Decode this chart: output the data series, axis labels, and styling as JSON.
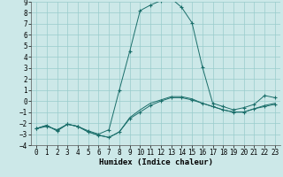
{
  "title": "",
  "xlabel": "Humidex (Indice chaleur)",
  "bg_color": "#cce8e8",
  "line_color": "#1a6e6a",
  "xlim": [
    -0.5,
    23.5
  ],
  "ylim": [
    -4,
    9
  ],
  "xticks": [
    0,
    1,
    2,
    3,
    4,
    5,
    6,
    7,
    8,
    9,
    10,
    11,
    12,
    13,
    14,
    15,
    16,
    17,
    18,
    19,
    20,
    21,
    22,
    23
  ],
  "yticks": [
    -4,
    -3,
    -2,
    -1,
    0,
    1,
    2,
    3,
    4,
    5,
    6,
    7,
    8,
    9
  ],
  "series": [
    {
      "x": [
        0,
        1,
        2,
        3,
        4,
        5,
        6,
        7,
        8,
        9,
        10,
        11,
        12,
        13,
        14,
        15,
        16,
        17,
        18,
        19,
        20,
        21,
        22,
        23
      ],
      "y": [
        -2.5,
        -2.2,
        -2.7,
        -2.1,
        -2.3,
        -2.8,
        -3.1,
        -3.3,
        -2.8,
        -1.6,
        -1.0,
        -0.4,
        0.0,
        0.3,
        0.3,
        0.1,
        -0.2,
        -0.5,
        -0.8,
        -1.0,
        -1.0,
        -0.7,
        -0.5,
        -0.3
      ],
      "marker": true,
      "lw": 0.7
    },
    {
      "x": [
        0,
        1,
        2,
        3,
        4,
        5,
        6,
        7,
        8,
        9,
        10,
        11,
        12,
        13,
        14,
        15,
        16,
        17,
        18,
        19,
        20,
        21,
        22,
        23
      ],
      "y": [
        -2.5,
        -2.3,
        -2.6,
        -2.1,
        -2.3,
        -2.7,
        -3.0,
        -2.6,
        1.0,
        4.5,
        8.2,
        8.7,
        9.1,
        9.3,
        8.5,
        7.1,
        3.1,
        -0.2,
        -0.5,
        -0.8,
        -0.6,
        -0.3,
        0.5,
        0.3
      ],
      "marker": true,
      "lw": 0.7
    },
    {
      "x": [
        0,
        1,
        2,
        3,
        4,
        5,
        6,
        7,
        8,
        9,
        10,
        11,
        12,
        13,
        14,
        15,
        16,
        17,
        18,
        19,
        20,
        21,
        22,
        23
      ],
      "y": [
        -2.5,
        -2.2,
        -2.7,
        -2.1,
        -2.3,
        -2.8,
        -3.1,
        -3.3,
        -2.8,
        -1.5,
        -0.8,
        -0.2,
        0.1,
        0.4,
        0.4,
        0.2,
        -0.2,
        -0.5,
        -0.8,
        -1.0,
        -1.0,
        -0.7,
        -0.4,
        -0.2
      ],
      "marker": false,
      "lw": 0.7
    }
  ],
  "grid_color": "#99cccc",
  "font_family": "monospace",
  "tick_fontsize": 5.5,
  "xlabel_fontsize": 6.5
}
